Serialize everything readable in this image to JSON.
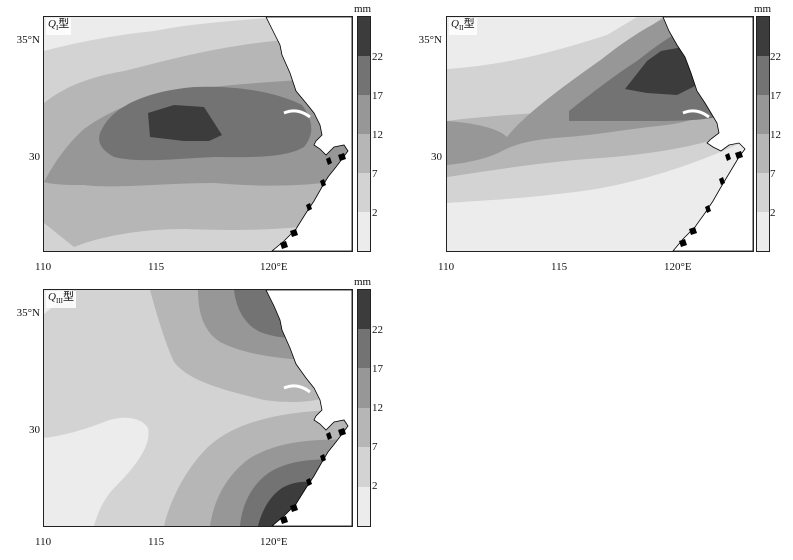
{
  "axes": {
    "x_ticks": [
      "110",
      "115",
      "120°E"
    ],
    "y_ticks": [
      "35°N",
      "30"
    ],
    "x_tick_values": [
      110,
      115,
      120
    ],
    "y_tick_values": [
      35,
      30
    ],
    "lon_range": [
      110,
      123
    ],
    "lat_range": [
      26,
      36.2
    ]
  },
  "colorbar": {
    "unit": "mm",
    "ticks": [
      "22",
      "17",
      "12",
      "7",
      "2"
    ],
    "levels": [
      2,
      7,
      12,
      17,
      22
    ],
    "colors": [
      "#ececec",
      "#d3d3d3",
      "#b6b6b6",
      "#979797",
      "#737373",
      "#3c3c3c"
    ]
  },
  "panels": [
    {
      "prefix": "Q",
      "subscript": "I",
      "suffix": "型"
    },
    {
      "prefix": "Q",
      "subscript": "II",
      "suffix": "型"
    },
    {
      "prefix": "Q",
      "subscript": "III",
      "suffix": "型"
    }
  ],
  "land_color": "#ffffff",
  "coast_color": "#000000"
}
